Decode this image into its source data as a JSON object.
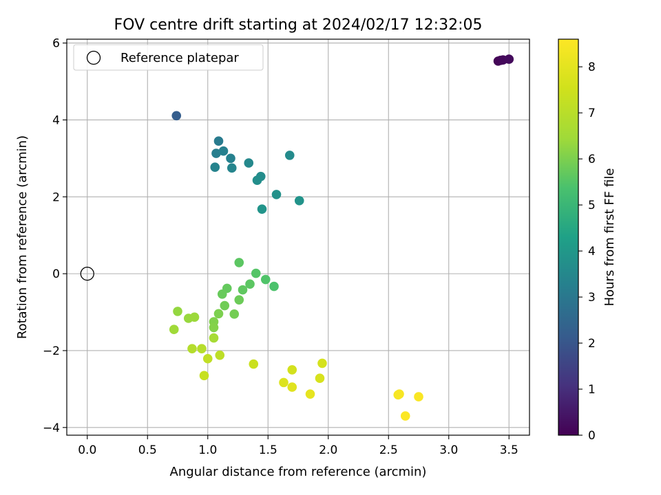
{
  "chart_data": {
    "type": "scatter",
    "title": "FOV centre drift starting at 2024/02/17 12:32:05",
    "xlabel": "Angular distance from reference (arcmin)",
    "ylabel": "Rotation from reference (arcmin)",
    "xlim": [
      -0.17,
      3.67
    ],
    "ylim": [
      -4.2,
      6.1
    ],
    "xticks": [
      0.0,
      0.5,
      1.0,
      1.5,
      2.0,
      2.5,
      3.0,
      3.5
    ],
    "xtick_labels": [
      "0.0",
      "0.5",
      "1.0",
      "1.5",
      "2.0",
      "2.5",
      "3.0",
      "3.5"
    ],
    "yticks": [
      -4,
      -2,
      0,
      2,
      4,
      6
    ],
    "ytick_labels": [
      "−4",
      "−2",
      "0",
      "2",
      "4",
      "6"
    ],
    "grid": true,
    "legend": {
      "position": "top-left",
      "entries": [
        "Reference platepar"
      ]
    },
    "colorbar": {
      "label": "Hours from first FF file",
      "range": [
        0,
        8.6
      ],
      "ticks": [
        0,
        1,
        2,
        3,
        4,
        5,
        6,
        7,
        8
      ],
      "tick_labels": [
        "0",
        "1",
        "2",
        "3",
        "4",
        "5",
        "6",
        "7",
        "8"
      ],
      "colormap": "viridis"
    },
    "reference_point": {
      "x": 0.0,
      "y": 0.0
    },
    "points": [
      {
        "x": 3.41,
        "y": 5.53,
        "h": 0.05
      },
      {
        "x": 3.43,
        "y": 5.55,
        "h": 0.1
      },
      {
        "x": 3.45,
        "y": 5.56,
        "h": 0.15
      },
      {
        "x": 3.5,
        "y": 5.58,
        "h": 0.2
      },
      {
        "x": 0.74,
        "y": 4.11,
        "h": 2.2
      },
      {
        "x": 1.09,
        "y": 3.45,
        "h": 3.1
      },
      {
        "x": 1.07,
        "y": 3.13,
        "h": 3.2
      },
      {
        "x": 1.13,
        "y": 3.19,
        "h": 3.25
      },
      {
        "x": 1.19,
        "y": 3.0,
        "h": 3.3
      },
      {
        "x": 1.06,
        "y": 2.77,
        "h": 3.35
      },
      {
        "x": 1.2,
        "y": 2.75,
        "h": 3.4
      },
      {
        "x": 1.34,
        "y": 2.88,
        "h": 3.5
      },
      {
        "x": 1.68,
        "y": 3.08,
        "h": 3.6
      },
      {
        "x": 1.44,
        "y": 2.53,
        "h": 3.65
      },
      {
        "x": 1.41,
        "y": 2.43,
        "h": 3.7
      },
      {
        "x": 1.57,
        "y": 2.06,
        "h": 3.8
      },
      {
        "x": 1.76,
        "y": 1.9,
        "h": 3.85
      },
      {
        "x": 1.45,
        "y": 1.68,
        "h": 3.9
      },
      {
        "x": 1.26,
        "y": 0.29,
        "h": 5.6
      },
      {
        "x": 1.4,
        "y": 0.01,
        "h": 5.5
      },
      {
        "x": 1.48,
        "y": -0.15,
        "h": 5.45
      },
      {
        "x": 1.55,
        "y": -0.33,
        "h": 5.4
      },
      {
        "x": 1.35,
        "y": -0.27,
        "h": 5.6
      },
      {
        "x": 1.29,
        "y": -0.42,
        "h": 5.65
      },
      {
        "x": 1.16,
        "y": -0.38,
        "h": 5.7
      },
      {
        "x": 1.12,
        "y": -0.53,
        "h": 5.75
      },
      {
        "x": 1.26,
        "y": -0.68,
        "h": 5.8
      },
      {
        "x": 1.14,
        "y": -0.83,
        "h": 5.85
      },
      {
        "x": 1.22,
        "y": -1.05,
        "h": 5.9
      },
      {
        "x": 1.09,
        "y": -1.04,
        "h": 6.0
      },
      {
        "x": 1.05,
        "y": -1.25,
        "h": 6.05
      },
      {
        "x": 1.05,
        "y": -1.4,
        "h": 6.1
      },
      {
        "x": 0.75,
        "y": -0.98,
        "h": 6.3
      },
      {
        "x": 0.84,
        "y": -1.16,
        "h": 6.35
      },
      {
        "x": 0.89,
        "y": -1.13,
        "h": 6.4
      },
      {
        "x": 0.72,
        "y": -1.45,
        "h": 6.45
      },
      {
        "x": 1.05,
        "y": -1.67,
        "h": 6.6
      },
      {
        "x": 0.87,
        "y": -1.95,
        "h": 6.9
      },
      {
        "x": 0.95,
        "y": -1.95,
        "h": 6.95
      },
      {
        "x": 1.1,
        "y": -2.12,
        "h": 7.1
      },
      {
        "x": 1.0,
        "y": -2.21,
        "h": 7.2
      },
      {
        "x": 0.97,
        "y": -2.65,
        "h": 7.3
      },
      {
        "x": 1.38,
        "y": -2.35,
        "h": 7.4
      },
      {
        "x": 1.7,
        "y": -2.5,
        "h": 7.6
      },
      {
        "x": 1.95,
        "y": -2.33,
        "h": 7.65
      },
      {
        "x": 1.93,
        "y": -2.72,
        "h": 7.7
      },
      {
        "x": 1.63,
        "y": -2.83,
        "h": 7.8
      },
      {
        "x": 1.7,
        "y": -2.95,
        "h": 7.9
      },
      {
        "x": 1.85,
        "y": -3.13,
        "h": 8.05
      },
      {
        "x": 2.58,
        "y": -3.15,
        "h": 8.4
      },
      {
        "x": 2.59,
        "y": -3.13,
        "h": 8.45
      },
      {
        "x": 2.75,
        "y": -3.2,
        "h": 8.5
      },
      {
        "x": 2.64,
        "y": -3.7,
        "h": 8.55
      }
    ]
  }
}
